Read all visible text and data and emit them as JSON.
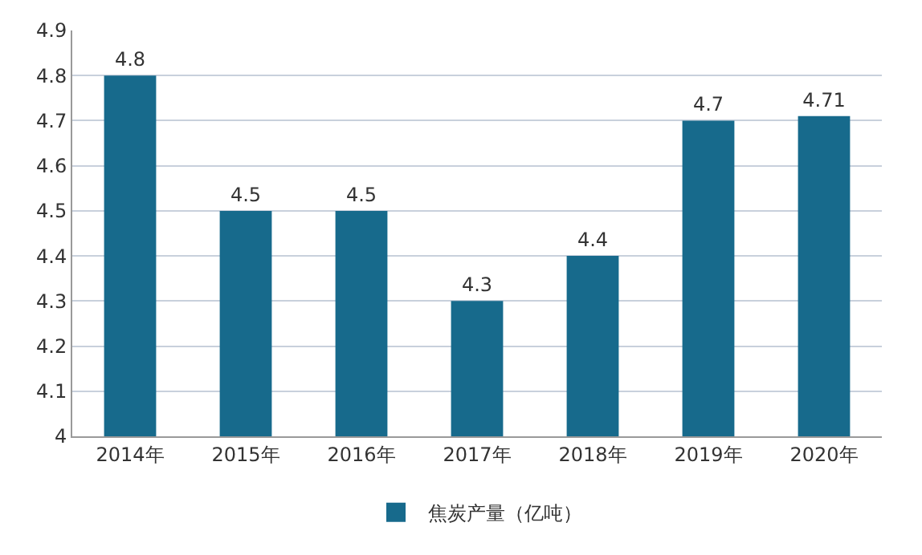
{
  "chart_data": {
    "type": "bar",
    "categories": [
      "2014年",
      "2015年",
      "2016年",
      "2017年",
      "2018年",
      "2019年",
      "2020年"
    ],
    "series": [
      {
        "name": "焦炭产量（亿吨）",
        "color": "#176a8c",
        "values": [
          4.8,
          4.5,
          4.5,
          4.3,
          4.4,
          4.7,
          4.71
        ]
      }
    ],
    "ylim": [
      4,
      4.9
    ],
    "yticks": [
      4,
      4.1,
      4.2,
      4.3,
      4.4,
      4.5,
      4.6,
      4.7,
      4.8,
      4.9
    ],
    "grid": "y",
    "legend": "bottom",
    "data_labels": true
  }
}
